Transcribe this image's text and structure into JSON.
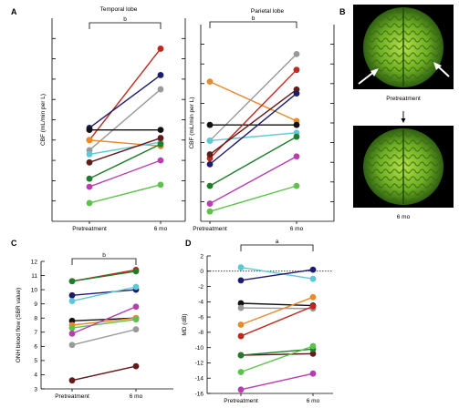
{
  "panel_labels": {
    "a": "A",
    "b": "B",
    "c": "C",
    "d": "D"
  },
  "panel_b": {
    "top_caption": "Pretreatment",
    "bottom_caption": "6 mo"
  },
  "chart_data": [
    {
      "id": "temporal",
      "type": "line",
      "title": "Temporal lobe",
      "ylabel": "CBF (mL/min per L)",
      "x": [
        "Pretreatment",
        "6 mo"
      ],
      "significance": "b",
      "ylim": [
        0,
        10
      ],
      "yticks": [
        1,
        2,
        3,
        4,
        5,
        6,
        7,
        8,
        9
      ],
      "series": [
        {
          "color": "#c0281c",
          "values": [
            4.0,
            8.5
          ]
        },
        {
          "color": "#1c1c6e",
          "values": [
            4.6,
            7.2
          ]
        },
        {
          "color": "#999999",
          "values": [
            3.5,
            6.5
          ]
        },
        {
          "color": "#111111",
          "values": [
            4.5,
            4.5
          ]
        },
        {
          "color": "#e8892b",
          "values": [
            4.0,
            3.7
          ]
        },
        {
          "color": "#5fc8d6",
          "values": [
            3.3,
            3.9
          ]
        },
        {
          "color": "#64191a",
          "values": [
            2.9,
            4.1
          ]
        },
        {
          "color": "#1e7d2a",
          "values": [
            2.1,
            3.8
          ]
        },
        {
          "color": "#b93db0",
          "values": [
            1.7,
            3.0
          ]
        },
        {
          "color": "#5cc24a",
          "values": [
            0.9,
            1.8
          ]
        }
      ]
    },
    {
      "id": "parietal",
      "type": "line",
      "title": "Parietal lobe",
      "ylabel": "CBF (mL/min per L)",
      "x": [
        "Pretreatment",
        "6 mo"
      ],
      "significance": "b",
      "ylim": [
        0,
        10
      ],
      "yticks": [
        1,
        2,
        3,
        4,
        5,
        6,
        7,
        8,
        9
      ],
      "series": [
        {
          "color": "#e8892b",
          "values": [
            7.1,
            5.1
          ]
        },
        {
          "color": "#999999",
          "values": [
            4.1,
            8.5
          ]
        },
        {
          "color": "#111111",
          "values": [
            4.9,
            4.9
          ]
        },
        {
          "color": "#5fc8d6",
          "values": [
            4.1,
            4.5
          ]
        },
        {
          "color": "#c0281c",
          "values": [
            3.2,
            7.7
          ]
        },
        {
          "color": "#64191a",
          "values": [
            3.4,
            6.7
          ]
        },
        {
          "color": "#1c1c6e",
          "values": [
            2.9,
            6.5
          ]
        },
        {
          "color": "#1e7d2a",
          "values": [
            1.8,
            4.3
          ]
        },
        {
          "color": "#b93db0",
          "values": [
            0.9,
            3.3
          ]
        },
        {
          "color": "#5cc24a",
          "values": [
            0.5,
            1.8
          ]
        }
      ]
    },
    {
      "id": "onh",
      "type": "line",
      "ylabel": "ONH blood flow (SBR value)",
      "x": [
        "Pretreatment",
        "6 mo"
      ],
      "significance": "b",
      "ylim": [
        3,
        12
      ],
      "yticks": [
        3,
        4,
        5,
        6,
        7,
        8,
        9,
        10,
        11,
        12
      ],
      "series": [
        {
          "color": "#c0281c",
          "values": [
            10.6,
            11.4
          ]
        },
        {
          "color": "#1e7d2a",
          "values": [
            10.6,
            11.3
          ]
        },
        {
          "color": "#1c1c6e",
          "values": [
            9.6,
            10.0
          ]
        },
        {
          "color": "#5fc8d6",
          "values": [
            9.2,
            10.2
          ]
        },
        {
          "color": "#111111",
          "values": [
            7.8,
            8.0
          ]
        },
        {
          "color": "#e8892b",
          "values": [
            7.5,
            8.0
          ]
        },
        {
          "color": "#5cc24a",
          "values": [
            7.3,
            7.9
          ]
        },
        {
          "color": "#b93db0",
          "values": [
            6.9,
            8.8
          ]
        },
        {
          "color": "#999999",
          "values": [
            6.1,
            7.2
          ]
        },
        {
          "color": "#64191a",
          "values": [
            3.6,
            4.6
          ]
        }
      ]
    },
    {
      "id": "md",
      "type": "line",
      "ylabel": "MD (dB)",
      "x": [
        "Pretreatment",
        "6 mo"
      ],
      "significance": "a",
      "ylim": [
        -16,
        2
      ],
      "yticks": [
        -16,
        -14,
        -12,
        -10,
        -8,
        -6,
        -4,
        -2,
        0,
        2
      ],
      "series": [
        {
          "color": "#5fc8d6",
          "values": [
            0.5,
            -1.0
          ]
        },
        {
          "color": "#1c1c6e",
          "values": [
            -1.2,
            0.2
          ]
        },
        {
          "color": "#111111",
          "values": [
            -4.2,
            -4.5
          ]
        },
        {
          "color": "#999999",
          "values": [
            -4.8,
            -4.9
          ]
        },
        {
          "color": "#e8892b",
          "values": [
            -7.0,
            -3.4
          ]
        },
        {
          "color": "#c0281c",
          "values": [
            -8.5,
            -4.6
          ]
        },
        {
          "color": "#64191a",
          "values": [
            -11.0,
            -10.8
          ]
        },
        {
          "color": "#1e7d2a",
          "values": [
            -11.0,
            -10.2
          ]
        },
        {
          "color": "#5cc24a",
          "values": [
            -13.2,
            -9.8
          ]
        },
        {
          "color": "#b93db0",
          "values": [
            -15.5,
            -13.4
          ]
        }
      ]
    }
  ]
}
